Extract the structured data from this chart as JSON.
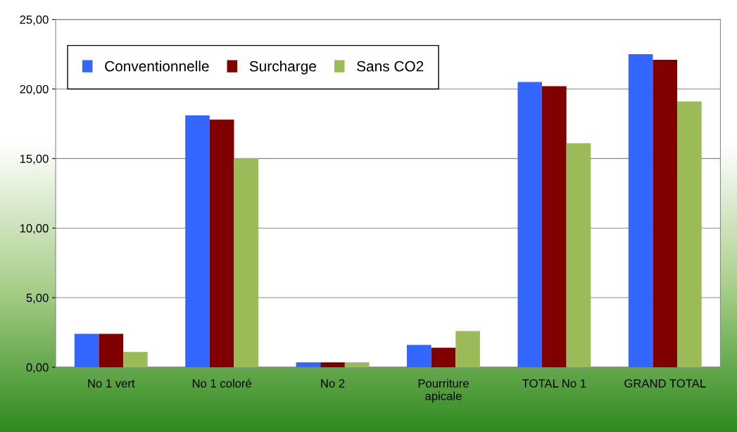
{
  "chart_data": {
    "type": "bar",
    "categories": [
      "No 1 vert",
      "No 1 coloré",
      "No 2",
      "Pourriture\napicale",
      "TOTAL No 1",
      "GRAND TOTAL"
    ],
    "series": [
      {
        "name": "Conventionnelle",
        "color": "#3366ff",
        "values": [
          2.4,
          18.1,
          0.35,
          1.6,
          20.5,
          22.5
        ]
      },
      {
        "name": "Surcharge",
        "color": "#800000",
        "values": [
          2.4,
          17.8,
          0.35,
          1.4,
          20.2,
          22.1
        ]
      },
      {
        "name": "Sans CO2",
        "color": "#9bbb59",
        "values": [
          1.1,
          15.0,
          0.35,
          2.6,
          16.1,
          19.1
        ]
      }
    ],
    "ylim": [
      0,
      25
    ],
    "yticks": [
      {
        "value": 0,
        "label": "0,00"
      },
      {
        "value": 5,
        "label": "5,00"
      },
      {
        "value": 10,
        "label": "10,00"
      },
      {
        "value": 15,
        "label": "15,00"
      },
      {
        "value": 20,
        "label": "20,00"
      },
      {
        "value": 25,
        "label": "25,00"
      }
    ],
    "grid": "y",
    "legend": "top left"
  }
}
